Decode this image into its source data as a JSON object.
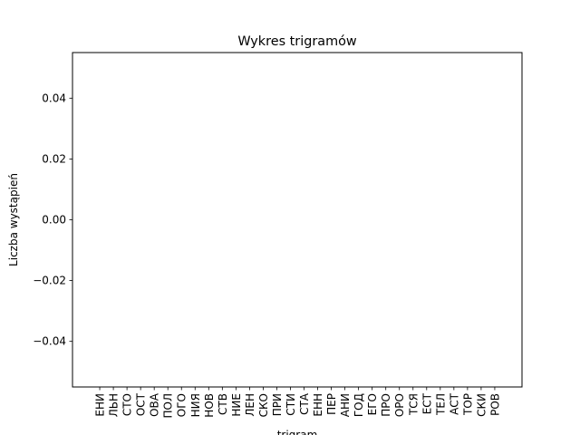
{
  "chart_data": {
    "type": "bar",
    "title": "Wykres trigramów",
    "xlabel": "trigram",
    "ylabel": "Liczba wystąpień",
    "categories": [
      "ЕНИ",
      "ЛЬН",
      "СТО",
      "ОСТ",
      "ОВА",
      "ПОЛ",
      "ОГО",
      "НИЯ",
      "НОВ",
      "СТВ",
      "НИЕ",
      "ЛЕН",
      "СКО",
      "ПРИ",
      "СТИ",
      "СТА",
      "ЕНН",
      "ПЕР",
      "АНИ",
      "ГОД",
      "ЕГО",
      "ПРО",
      "ОРО",
      "ТСЯ",
      "ЕСТ",
      "ТЕЛ",
      "АСТ",
      "ТОР",
      "СКИ",
      "РОВ"
    ],
    "values": [
      0,
      0,
      0,
      0,
      0,
      0,
      0,
      0,
      0,
      0,
      0,
      0,
      0,
      0,
      0,
      0,
      0,
      0,
      0,
      0,
      0,
      0,
      0,
      0,
      0,
      0,
      0,
      0,
      0,
      0
    ],
    "ylim": [
      -0.055,
      0.055
    ],
    "yticks": [
      -0.04,
      -0.02,
      0.0,
      0.02,
      0.04
    ],
    "ytick_labels": [
      "−0.04",
      "−0.02",
      "0.00",
      "0.02",
      "0.04"
    ],
    "grid": false,
    "legend": false,
    "colors": {
      "axis": "#000000",
      "background": "#ffffff"
    }
  }
}
